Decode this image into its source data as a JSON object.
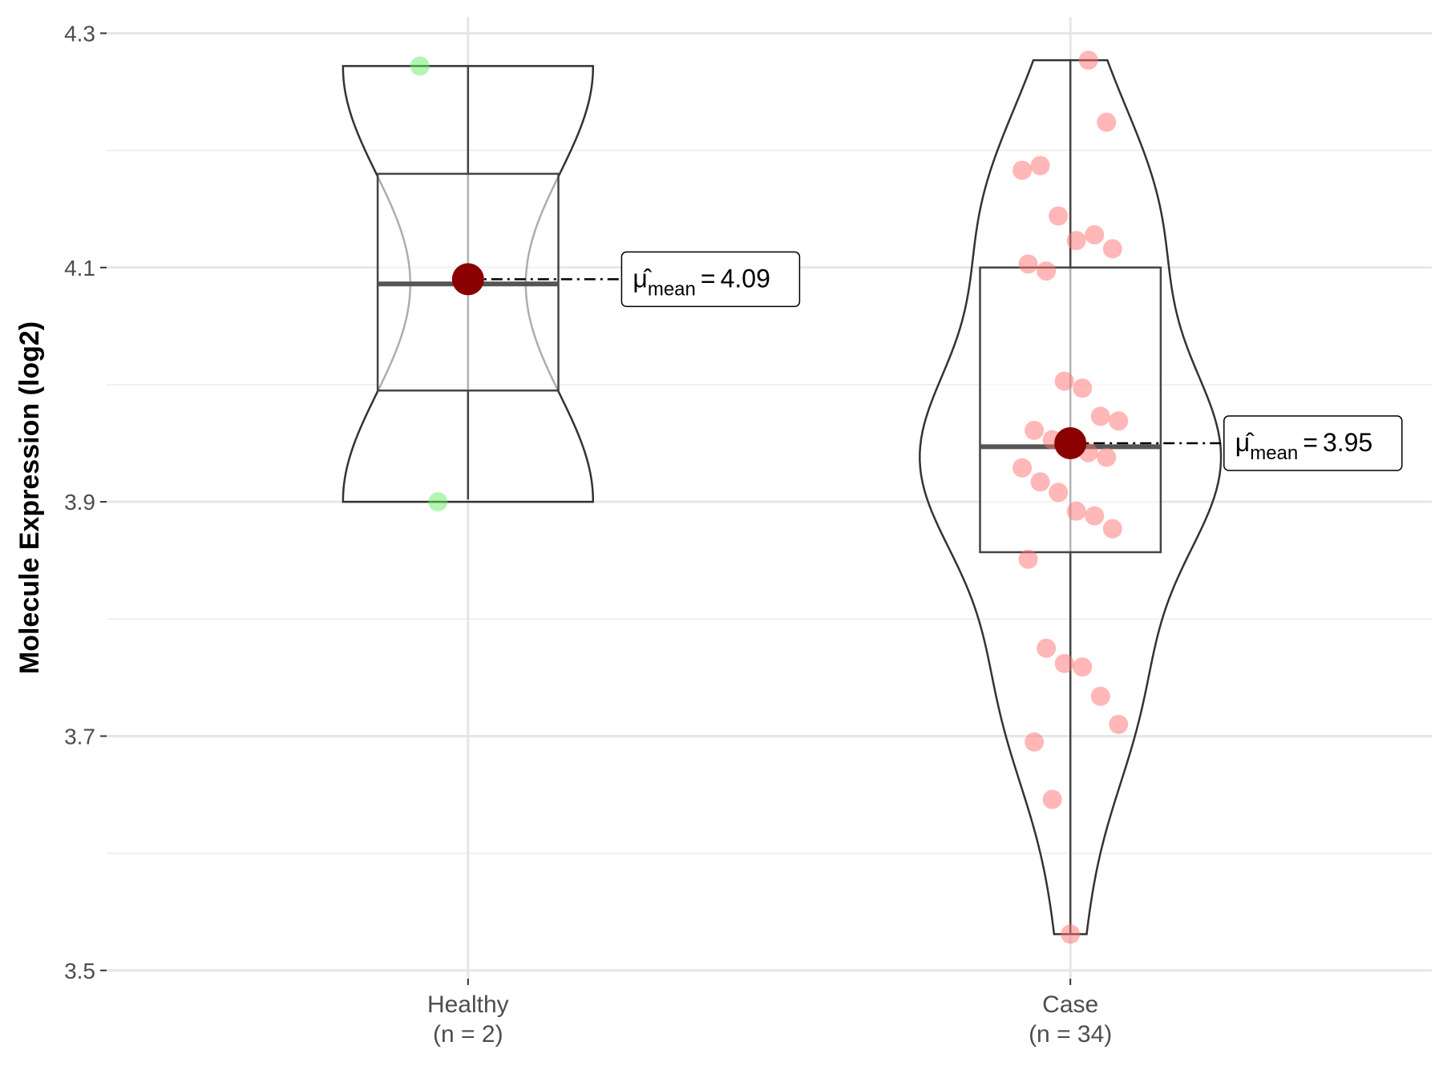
{
  "chart_data": {
    "type": "violin",
    "y_label": "Molecule Expression (log2)",
    "ylim": [
      3.493,
      4.314
    ],
    "yticks": [
      3.5,
      3.7,
      3.9,
      4.1,
      4.3
    ],
    "minor_yticks": [
      3.6,
      3.8,
      4.0,
      4.2
    ],
    "grid": true,
    "annotation": {
      "symbol": "μ̂",
      "subscript": "mean",
      "equals": "="
    },
    "groups": [
      {
        "category": "Healthy",
        "n_label": "(n = 2)",
        "color": "#66ee66",
        "values": [
          4.272,
          3.9
        ],
        "box": {
          "min": 3.902,
          "q1": 3.995,
          "median": 4.086,
          "q3": 4.18,
          "max": 4.272
        },
        "mean": 4.09
      },
      {
        "category": "Case",
        "n_label": "(n = 34)",
        "color": "#ff6f6f",
        "values": [
          4.277,
          4.224,
          4.183,
          4.187,
          4.144,
          4.123,
          4.128,
          4.116,
          4.103,
          4.097,
          4.003,
          3.997,
          3.973,
          3.969,
          3.961,
          3.953,
          3.951,
          3.942,
          3.938,
          3.929,
          3.917,
          3.908,
          3.892,
          3.888,
          3.877,
          3.851,
          3.775,
          3.762,
          3.759,
          3.734,
          3.71,
          3.695,
          3.646,
          3.531
        ],
        "box": {
          "min": 3.531,
          "q1": 3.857,
          "median": 3.947,
          "q3": 4.1,
          "max": 4.277
        },
        "mean": 3.95
      }
    ]
  }
}
